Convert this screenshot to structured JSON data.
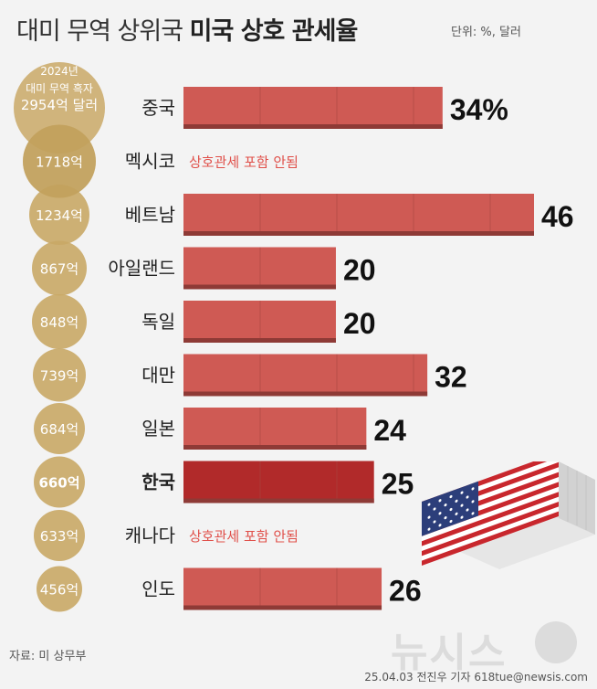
{
  "title": {
    "part1": "대미 무역 상위국",
    "part2": "미국 상호 관세율"
  },
  "unit_label": "단위: %, 달러",
  "source": "자료: 미 상무부",
  "credit": "25.04.03 전진우 기자 618tue@newsis.com",
  "watermark": "뉴시스",
  "colors": {
    "bar": "#cf5a54",
    "bar_highlight": "#b12a2a",
    "bar_shadow": "#8e3a36",
    "circle": "#c9a866",
    "label_red": "#e0504a"
  },
  "chart_data": {
    "type": "bar",
    "orientation": "horizontal",
    "circle_header": [
      "2024년",
      "대미 무역 흑자",
      "2954억 달러"
    ],
    "categories": [
      "중국",
      "멕시코",
      "베트남",
      "아일랜드",
      "독일",
      "대만",
      "일본",
      "한국",
      "캐나다",
      "인도"
    ],
    "surplus": [
      "2954억 달러",
      "1718억",
      "1234억",
      "867억",
      "848억",
      "739억",
      "684억",
      "660억",
      "633억",
      "456억"
    ],
    "values": [
      34,
      null,
      46,
      20,
      20,
      32,
      24,
      25,
      null,
      26
    ],
    "value_labels": [
      "34%",
      "",
      "46",
      "20",
      "20",
      "32",
      "24",
      "25",
      "",
      "26"
    ],
    "not_included_label": "상호관세 포함 안됨",
    "highlight": "한국",
    "xlim": [
      0,
      46
    ]
  }
}
